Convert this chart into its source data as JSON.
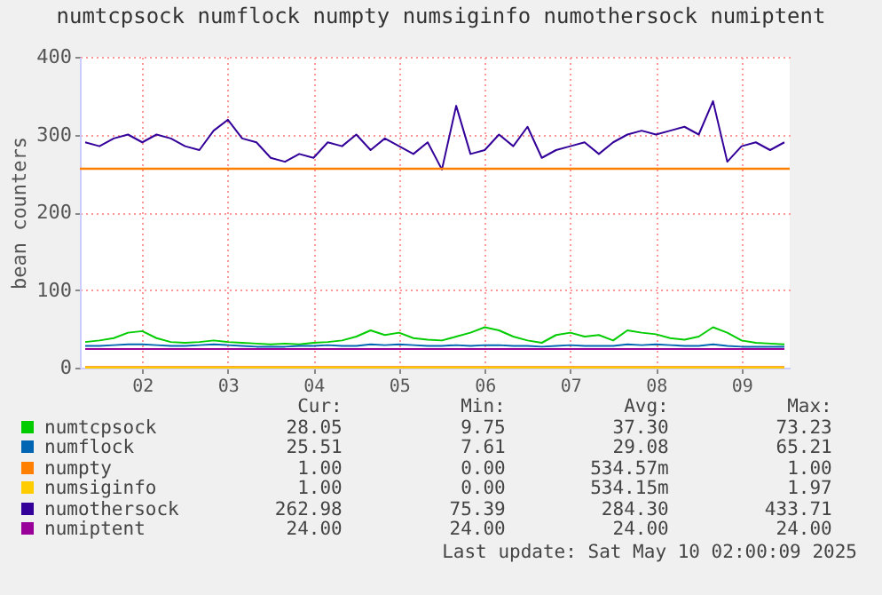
{
  "chart_data": {
    "type": "line",
    "title": "numtcpsock numflock numpty numsiginfo numothersock numiptent",
    "ylabel": "bean counters",
    "x": [
      "2025-05-01T20:00",
      "2025-05-02T00:00",
      "2025-05-02T04:00",
      "2025-05-02T08:00",
      "2025-05-02T12:00",
      "2025-05-02T16:00",
      "2025-05-02T20:00",
      "2025-05-03T00:00",
      "2025-05-03T04:00",
      "2025-05-03T08:00",
      "2025-05-03T12:00",
      "2025-05-03T16:00",
      "2025-05-03T20:00",
      "2025-05-04T00:00",
      "2025-05-04T04:00",
      "2025-05-04T08:00",
      "2025-05-04T12:00",
      "2025-05-04T16:00",
      "2025-05-04T20:00",
      "2025-05-05T00:00",
      "2025-05-05T04:00",
      "2025-05-05T08:00",
      "2025-05-05T12:00",
      "2025-05-05T16:00",
      "2025-05-05T20:00",
      "2025-05-06T00:00",
      "2025-05-06T04:00",
      "2025-05-06T08:00",
      "2025-05-06T12:00",
      "2025-05-06T16:00",
      "2025-05-06T20:00",
      "2025-05-07T00:00",
      "2025-05-07T04:00",
      "2025-05-07T08:00",
      "2025-05-07T12:00",
      "2025-05-07T16:00",
      "2025-05-07T20:00",
      "2025-05-08T00:00",
      "2025-05-08T04:00",
      "2025-05-08T08:00",
      "2025-05-08T12:00",
      "2025-05-08T16:00",
      "2025-05-08T20:00",
      "2025-05-09T00:00",
      "2025-05-09T04:00",
      "2025-05-09T08:00",
      "2025-05-09T12:00",
      "2025-05-09T16:00",
      "2025-05-09T20:00",
      "2025-05-10T00:00"
    ],
    "series": [
      {
        "name": "numtcpsock",
        "color": "#00cc00",
        "values": [
          33,
          35,
          38,
          45,
          47,
          38,
          33,
          32,
          33,
          35,
          33,
          32,
          31,
          30,
          31,
          30,
          32,
          33,
          35,
          40,
          48,
          42,
          45,
          38,
          36,
          35,
          40,
          45,
          52,
          48,
          40,
          35,
          32,
          42,
          45,
          40,
          42,
          35,
          48,
          45,
          43,
          38,
          36,
          40,
          52,
          45,
          35,
          32,
          31,
          30
        ]
      },
      {
        "name": "numflock",
        "color": "#0066b3",
        "values": [
          28,
          28,
          29,
          30,
          30,
          29,
          28,
          28,
          29,
          30,
          29,
          28,
          27,
          27,
          27,
          28,
          28,
          29,
          28,
          28,
          30,
          29,
          30,
          29,
          28,
          28,
          29,
          28,
          29,
          29,
          28,
          28,
          27,
          28,
          29,
          28,
          28,
          28,
          30,
          29,
          30,
          29,
          28,
          28,
          30,
          28,
          27,
          27,
          27,
          27
        ]
      },
      {
        "name": "numpty",
        "color": "#ff8000",
        "values": [
          1,
          1,
          1,
          1,
          1,
          1,
          1,
          1,
          1,
          1,
          1,
          1,
          1,
          1,
          1,
          1,
          1,
          1,
          1,
          1,
          1,
          1,
          1,
          1,
          1,
          1,
          1,
          1,
          1,
          1,
          1,
          1,
          1,
          1,
          1,
          1,
          1,
          1,
          1,
          1,
          1,
          1,
          1,
          1,
          1,
          1,
          1,
          1,
          1,
          1
        ]
      },
      {
        "name": "numsiginfo",
        "color": "#ffcc00",
        "values": [
          0,
          0,
          0,
          0,
          0,
          0,
          0,
          0,
          0,
          0,
          0,
          0,
          0,
          0,
          0,
          0,
          0,
          0,
          0,
          0,
          0,
          0,
          0,
          0,
          0,
          0,
          0,
          0,
          0,
          0,
          0,
          0,
          0,
          0,
          0,
          0,
          0,
          0,
          0,
          0,
          0,
          0,
          0,
          0,
          0,
          0,
          0,
          0,
          0,
          0
        ]
      },
      {
        "name": "numothersock",
        "color": "#330099",
        "values": [
          290,
          285,
          295,
          300,
          290,
          300,
          295,
          285,
          280,
          305,
          319,
          295,
          290,
          270,
          265,
          275,
          270,
          290,
          285,
          300,
          280,
          295,
          285,
          275,
          290,
          255,
          337,
          275,
          280,
          300,
          285,
          310,
          270,
          280,
          285,
          290,
          275,
          290,
          300,
          305,
          300,
          305,
          310,
          300,
          343,
          265,
          285,
          290,
          280,
          290
        ]
      },
      {
        "name": "numiptent",
        "color": "#990099",
        "values": [
          24,
          24,
          24,
          24,
          24,
          24,
          24,
          24,
          24,
          24,
          24,
          24,
          24,
          24,
          24,
          24,
          24,
          24,
          24,
          24,
          24,
          24,
          24,
          24,
          24,
          24,
          24,
          24,
          24,
          24,
          24,
          24,
          24,
          24,
          24,
          24,
          24,
          24,
          24,
          24,
          24,
          24,
          24,
          24,
          24,
          24,
          24,
          24,
          24,
          24
        ]
      }
    ],
    "ref_lines": [
      {
        "axis": "y",
        "value": 256,
        "color": "#ff8000"
      }
    ],
    "xlim": [
      "2025-05-01T18:30",
      "2025-05-10T01:30"
    ],
    "xticks": [
      {
        "value": "2025-05-02T12:00",
        "label": "02"
      },
      {
        "value": "2025-05-03T12:00",
        "label": "03"
      },
      {
        "value": "2025-05-04T12:00",
        "label": "04"
      },
      {
        "value": "2025-05-05T12:00",
        "label": "05"
      },
      {
        "value": "2025-05-06T12:00",
        "label": "06"
      },
      {
        "value": "2025-05-07T12:00",
        "label": "07"
      },
      {
        "value": "2025-05-08T12:00",
        "label": "08"
      },
      {
        "value": "2025-05-09T12:00",
        "label": "09"
      }
    ],
    "ylim": [
      0,
      400
    ],
    "yticks": [
      0,
      100,
      200,
      300,
      400
    ],
    "grid": true,
    "legend": "bottom",
    "annotations": [
      "Cur:",
      "Min:",
      "Avg:",
      "Max:",
      "28.05",
      "9.75",
      "37.30",
      "73.23",
      "25.51",
      "7.61",
      "29.08",
      "65.21",
      "1.00",
      "0.00",
      "534.57m",
      "1.00",
      "1.00",
      "0.00",
      "534.15m",
      "1.97",
      "262.98",
      "75.39",
      "284.30",
      "433.71",
      "24.00",
      "24.00",
      "24.00",
      "24.00",
      "Last update: Sat May 10 02:00:09 2025"
    ]
  }
}
